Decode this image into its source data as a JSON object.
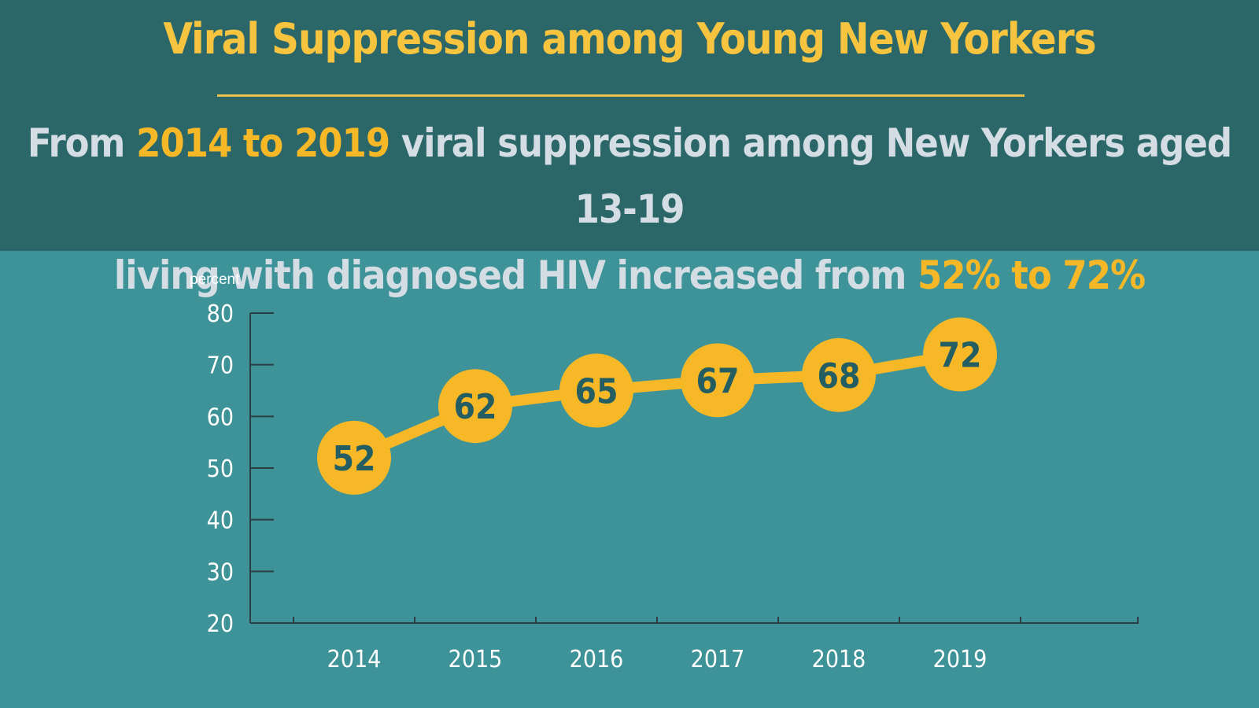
{
  "header": {
    "title": "Viral Suppression among Young New Yorkers",
    "subtitle_line1": {
      "part1": "From ",
      "highlight1": "2014 to 2019",
      "part2": " viral suppression among New Yorkers aged 13-19"
    },
    "subtitle_line2": {
      "part1": "living with diagnosed HIV increased from ",
      "highlight1": "52% to 72%"
    }
  },
  "colors": {
    "header_bg": "#2b6769",
    "body_bg": "#3d9398",
    "accent": "#f7b827",
    "point_label": "#245e63"
  },
  "chart_data": {
    "type": "line",
    "ylabel": "percent",
    "xlabel": "",
    "ylim": [
      20,
      80
    ],
    "yticks": [
      20,
      30,
      40,
      50,
      60,
      70,
      80
    ],
    "categories": [
      "2014",
      "2015",
      "2016",
      "2017",
      "2018",
      "2019"
    ],
    "values": [
      52,
      62,
      65,
      67,
      68,
      72
    ],
    "point_labels": [
      "52",
      "62",
      "65",
      "67",
      "68",
      "72"
    ],
    "grid": false,
    "legend": "none"
  }
}
